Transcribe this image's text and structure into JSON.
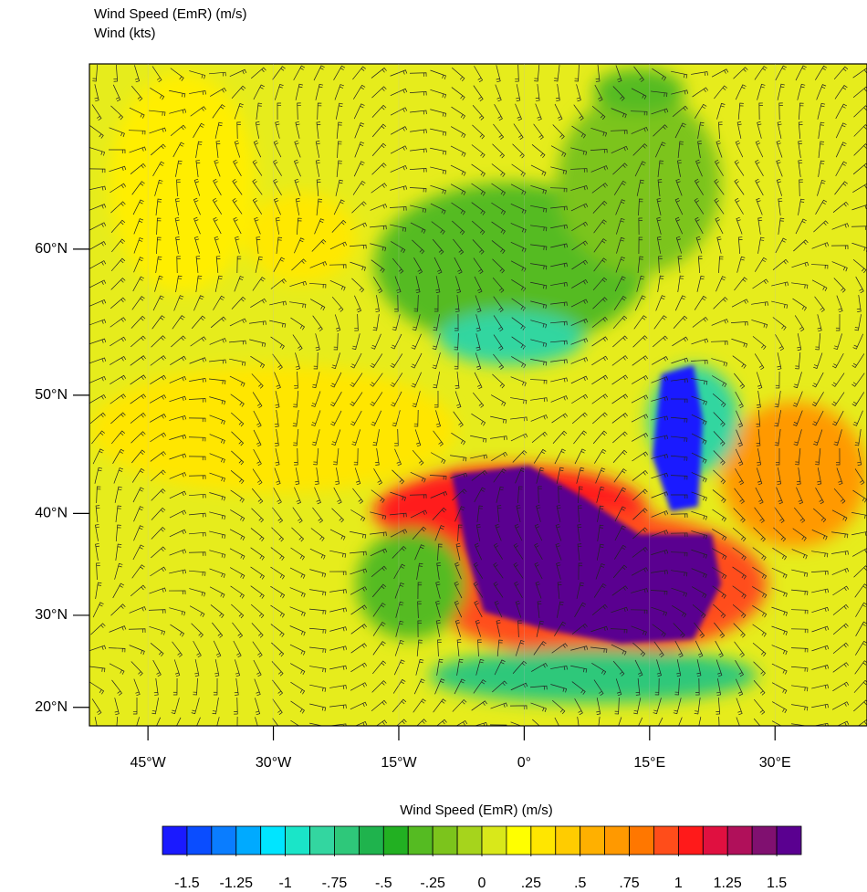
{
  "chart_data": {
    "type": "map",
    "title": "Wind Speed (EmR)   (m/s)",
    "subtitle": "Wind   (kts)",
    "projection": "mercator",
    "xlim": [
      -52,
      41
    ],
    "ylim": [
      17.9,
      69.4
    ],
    "xticks": [
      {
        "value": -45,
        "label": "45°W"
      },
      {
        "value": -30,
        "label": "30°W"
      },
      {
        "value": -15,
        "label": "15°W"
      },
      {
        "value": 0,
        "label": "0°"
      },
      {
        "value": 15,
        "label": "15°E"
      },
      {
        "value": 30,
        "label": "30°E"
      }
    ],
    "yticks": [
      {
        "value": 20,
        "label": "20°N"
      },
      {
        "value": 30,
        "label": "30°N"
      },
      {
        "value": 40,
        "label": "40°N"
      },
      {
        "value": 50,
        "label": "50°N"
      },
      {
        "value": 60,
        "label": "60°N"
      }
    ],
    "colorbar": {
      "title": "Wind Speed (EmR)  (m/s)",
      "colors": [
        "#1a1aff",
        "#0a4dff",
        "#0a7dff",
        "#00aaff",
        "#00e5ff",
        "#1ae5c8",
        "#33d6a0",
        "#2ec87a",
        "#1fb34d",
        "#22b022",
        "#55bb22",
        "#7cc41c",
        "#a6d41c",
        "#d9e81a",
        "#ffff00",
        "#ffe600",
        "#ffcc00",
        "#ffb000",
        "#ff9900",
        "#ff7700",
        "#ff4d1a",
        "#ff1a1a",
        "#e01040",
        "#b0105a",
        "#801070",
        "#5a0090"
      ],
      "lim": [
        -1.625,
        1.625
      ],
      "ticks": [
        -1.5,
        -1.25,
        -1,
        {
          "value": -0.75,
          "label": "-.75"
        },
        {
          "value": -0.5,
          "label": "-.5"
        },
        {
          "value": -0.25,
          "label": "-.25"
        },
        0,
        {
          "value": 0.25,
          "label": ".25"
        },
        {
          "value": 0.5,
          "label": ".5"
        },
        {
          "value": 0.75,
          "label": ".75"
        },
        1,
        1.25,
        1.5
      ]
    }
  }
}
